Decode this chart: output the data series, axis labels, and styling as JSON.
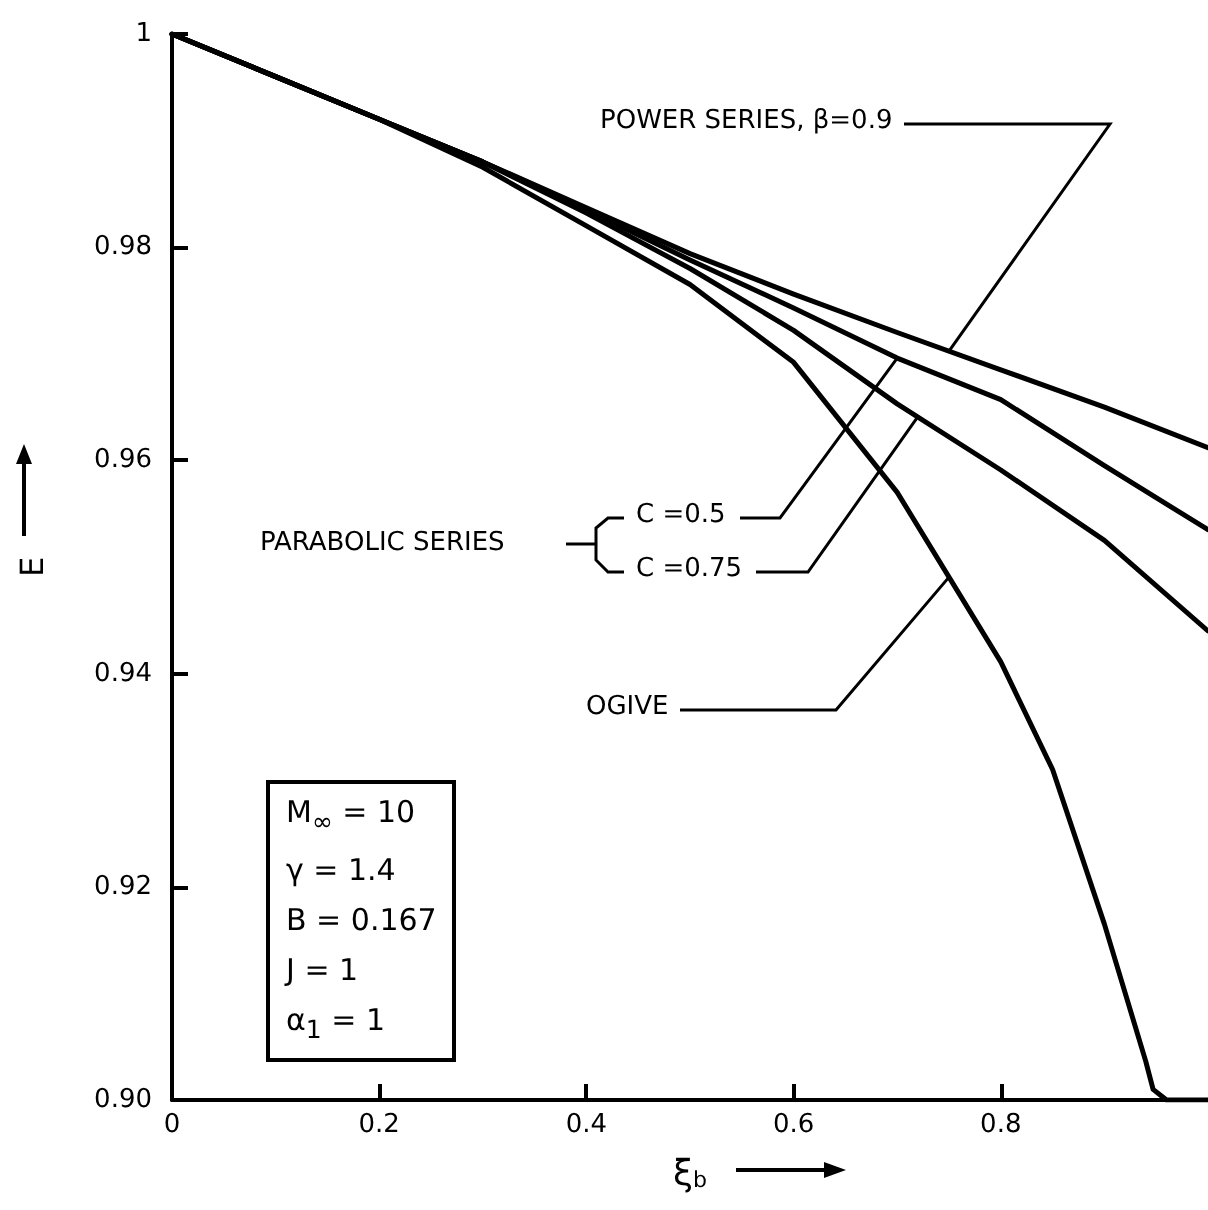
{
  "chart_data": {
    "type": "line",
    "xlabel": "ξ$_{b}$",
    "ylabel": "E",
    "xlim": [
      0,
      1
    ],
    "ylim": [
      0.9,
      1
    ],
    "xticks": [
      0,
      0.2,
      0.4,
      0.6,
      0.8
    ],
    "yticks": [
      {
        "value": 0.9,
        "label": "0.90"
      },
      0.92,
      0.94,
      0.96,
      0.98,
      1
    ],
    "grid": false,
    "marker": "none",
    "line_style": "solid",
    "series": [
      {
        "color": "#000000",
        "x": [
          0,
          0.1,
          0.2,
          0.3,
          0.4,
          0.5,
          0.6,
          0.7,
          0.8,
          0.9,
          1
        ],
        "values": [
          1,
          0.996,
          0.992,
          0.988,
          0.9837,
          0.9794,
          0.9756,
          0.972,
          0.9685,
          0.965,
          0.9612
        ]
      },
      {
        "color": "#000000",
        "x": [
          0,
          0.1,
          0.2,
          0.3,
          0.4,
          0.5,
          0.6,
          0.7,
          0.8,
          0.9,
          1
        ],
        "values": [
          1,
          0.996,
          0.992,
          0.988,
          0.9835,
          0.9788,
          0.9743,
          0.9696,
          0.9657,
          0.9595,
          0.9535
        ]
      },
      {
        "color": "#000000",
        "x": [
          0,
          0.1,
          0.2,
          0.3,
          0.4,
          0.5,
          0.6,
          0.7,
          0.8,
          0.9,
          1
        ],
        "values": [
          1,
          0.996,
          0.992,
          0.988,
          0.9832,
          0.978,
          0.9722,
          0.9653,
          0.9591,
          0.9525,
          0.944
        ]
      },
      {
        "color": "#000000",
        "x": [
          0,
          0.1,
          0.2,
          0.3,
          0.4,
          0.5,
          0.6,
          0.7,
          0.8,
          0.85,
          0.9,
          0.94,
          0.947,
          0.96,
          1
        ],
        "values": [
          1,
          0.996,
          0.992,
          0.9875,
          0.982,
          0.9765,
          0.9692,
          0.957,
          0.9411,
          0.931,
          0.9165,
          0.9036,
          0.901,
          0.9,
          0.9
        ]
      }
    ],
    "annotations": [
      {
        "text": "POWER SERIES, β=0.9",
        "x": 0.75,
        "y": 0.97025
      },
      {
        "text": "C =0.5",
        "x": 0.7,
        "y": 0.9696
      },
      {
        "text": "C =0.75",
        "x": 0.72,
        "y": 0.9641
      },
      {
        "text": "OGIVE",
        "x": 0.75,
        "y": 0.94905
      },
      "PARABOLIC SERIES",
      "M$_{∞}$ = 10",
      "γ = 1.4",
      "B = 0.167",
      "J = 1",
      "α$_{1}$ = 1"
    ]
  }
}
